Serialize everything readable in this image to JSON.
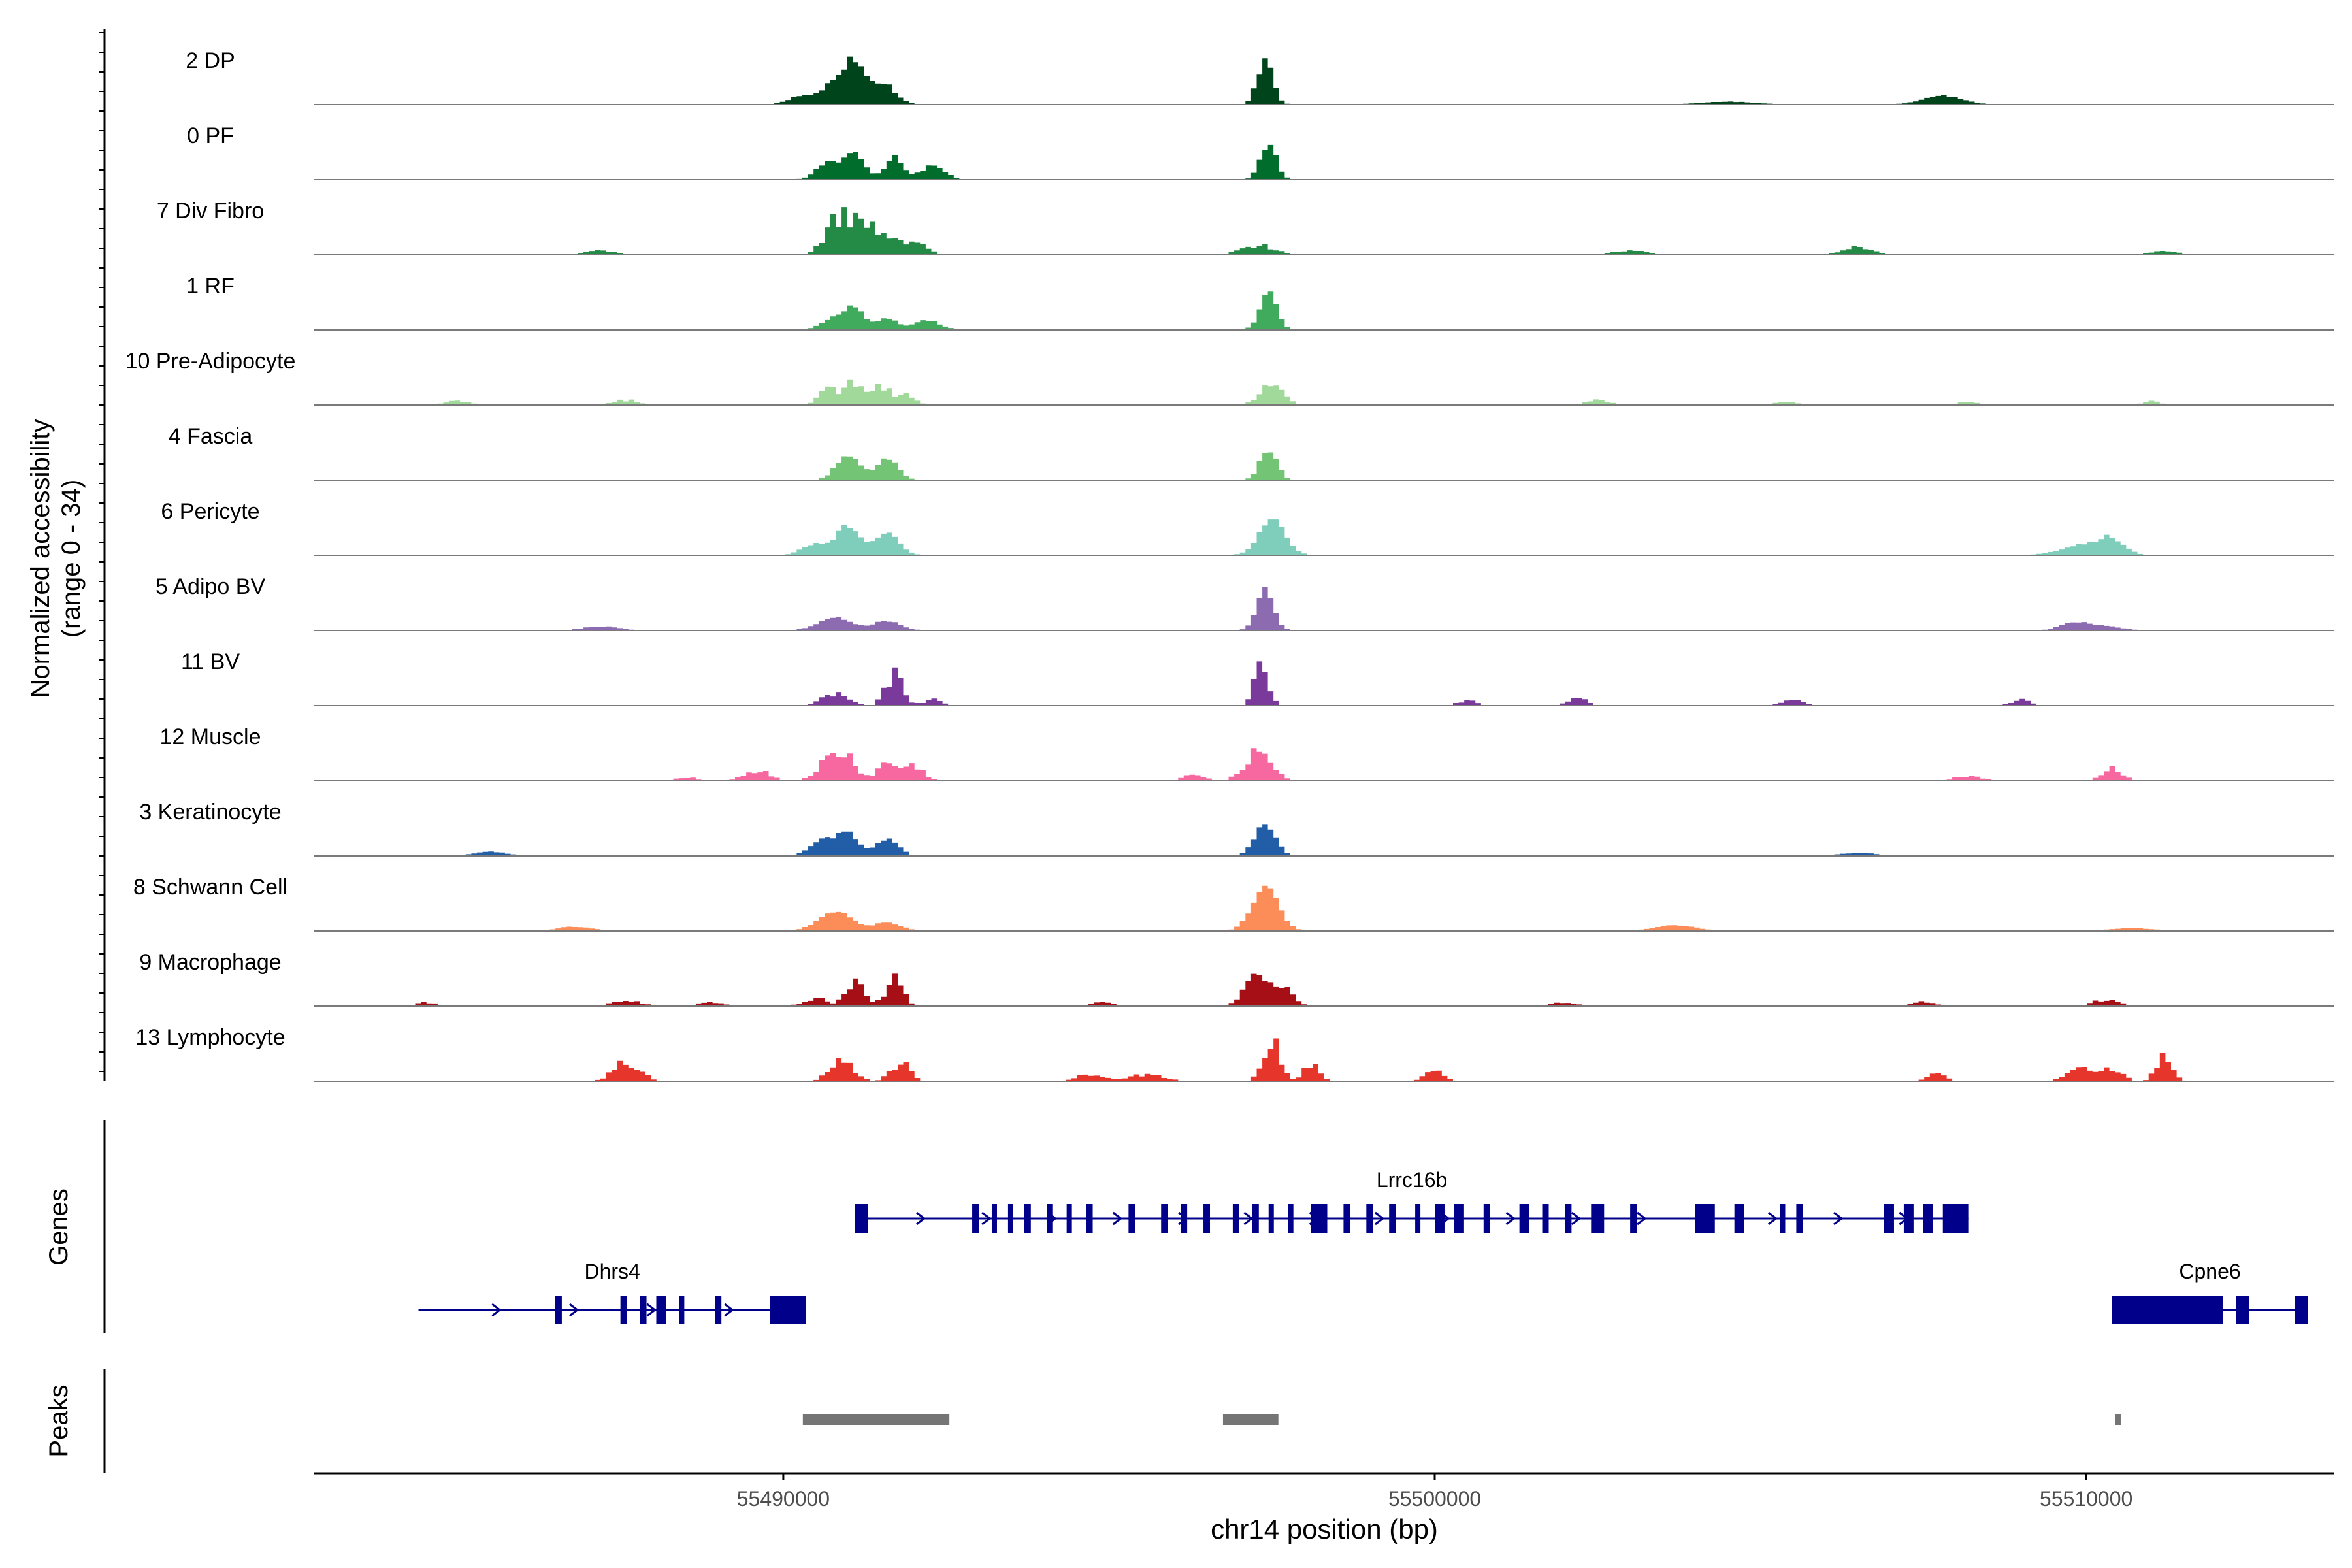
{
  "chart_data": {
    "type": "area",
    "chromosome": "chr14",
    "xlabel": "chr14 position (bp)",
    "ylabel_line1": "Normalized accessibility",
    "ylabel_line2": "(range 0 - 34)",
    "y_range": [
      0,
      34
    ],
    "xlim": [
      55482800,
      55513800
    ],
    "x_ticks": [
      55490000,
      55500000,
      55510000
    ],
    "x_tick_labels": [
      "55490000",
      "55500000",
      "55510000"
    ],
    "tracks": [
      {
        "name": "2 DP",
        "color": "#00441b",
        "baseline": 0.08,
        "width_factor": 1.0,
        "sparse": false,
        "peaks": [
          [
            55490800,
            16,
            180
          ],
          [
            55491100,
            28,
            130
          ],
          [
            55491500,
            16,
            200
          ],
          [
            55490300,
            6,
            200
          ],
          [
            55497400,
            31,
            120
          ],
          [
            55507800,
            6,
            300
          ],
          [
            55504500,
            2,
            400
          ]
        ]
      },
      {
        "name": "0 PF",
        "color": "#006d2c",
        "baseline": 0.08,
        "width_factor": 1.0,
        "sparse": false,
        "peaks": [
          [
            55490700,
            12,
            180
          ],
          [
            55491100,
            18,
            150
          ],
          [
            55491700,
            16,
            140
          ],
          [
            55492300,
            10,
            180
          ],
          [
            55497450,
            26,
            120
          ]
        ]
      },
      {
        "name": "7 Div Fibro",
        "color": "#238b45",
        "baseline": 0.3,
        "width_factor": 1.0,
        "sparse": true,
        "peaks": [
          [
            55490900,
            32,
            220
          ],
          [
            55491300,
            20,
            160
          ],
          [
            55491700,
            12,
            180
          ],
          [
            55492100,
            8,
            150
          ],
          [
            55497300,
            8,
            260
          ],
          [
            55487200,
            4,
            200
          ],
          [
            55506500,
            6,
            250
          ],
          [
            55511200,
            4,
            200
          ],
          [
            55503000,
            3,
            300
          ]
        ]
      },
      {
        "name": "1 RF",
        "color": "#41ab5d",
        "baseline": 0.05,
        "width_factor": 1.0,
        "sparse": false,
        "peaks": [
          [
            55490800,
            8,
            200
          ],
          [
            55491100,
            15,
            150
          ],
          [
            55491600,
            8,
            150
          ],
          [
            55492200,
            7,
            200
          ],
          [
            55497450,
            27,
            130
          ]
        ]
      },
      {
        "name": "10 Pre-Adipocyte",
        "color": "#a1d99b",
        "baseline": 0.2,
        "width_factor": 1.0,
        "sparse": true,
        "peaks": [
          [
            55490700,
            12,
            150
          ],
          [
            55491100,
            20,
            150
          ],
          [
            55491500,
            16,
            150
          ],
          [
            55491900,
            10,
            120
          ],
          [
            55497500,
            16,
            180
          ],
          [
            55485000,
            3,
            200
          ],
          [
            55487600,
            4,
            200
          ],
          [
            55502500,
            5,
            150
          ],
          [
            55505400,
            3,
            150
          ],
          [
            55508200,
            3,
            150
          ],
          [
            55511000,
            3,
            150
          ]
        ]
      },
      {
        "name": "4 Fascia",
        "color": "#74c476",
        "baseline": 0.05,
        "width_factor": 1.0,
        "sparse": false,
        "peaks": [
          [
            55491000,
            18,
            180
          ],
          [
            55491600,
            16,
            160
          ],
          [
            55497450,
            23,
            130
          ]
        ]
      },
      {
        "name": "6 Pericyte",
        "color": "#7fcdbb",
        "baseline": 0.1,
        "width_factor": 1.0,
        "sparse": false,
        "peaks": [
          [
            55490500,
            8,
            200
          ],
          [
            55491000,
            21,
            180
          ],
          [
            55491600,
            16,
            180
          ],
          [
            55497500,
            25,
            200
          ],
          [
            55510000,
            8,
            350
          ],
          [
            55510400,
            9,
            180
          ]
        ]
      },
      {
        "name": "5 Adipo BV",
        "color": "#8c6bb1",
        "baseline": 0.1,
        "width_factor": 1.0,
        "sparse": false,
        "peaks": [
          [
            55490800,
            10,
            250
          ],
          [
            55491600,
            7,
            200
          ],
          [
            55497400,
            30,
            130
          ],
          [
            55487200,
            3,
            250
          ],
          [
            55509800,
            6,
            200
          ],
          [
            55510300,
            3,
            250
          ]
        ]
      },
      {
        "name": "11 BV",
        "color": "#7a3a9c",
        "baseline": 0.3,
        "width_factor": 1.0,
        "sparse": true,
        "peaks": [
          [
            55490800,
            10,
            200
          ],
          [
            55491700,
            25,
            130
          ],
          [
            55492300,
            5,
            150
          ],
          [
            55497350,
            34,
            110
          ],
          [
            55502200,
            6,
            150
          ],
          [
            55505500,
            6,
            150
          ],
          [
            55509000,
            5,
            150
          ],
          [
            55500500,
            4,
            150
          ]
        ]
      },
      {
        "name": "12 Muscle",
        "color": "#f768a1",
        "baseline": 0.3,
        "width_factor": 1.0,
        "sparse": true,
        "peaks": [
          [
            55490700,
            16,
            180
          ],
          [
            55491000,
            16,
            150
          ],
          [
            55491600,
            14,
            150
          ],
          [
            55492000,
            12,
            150
          ],
          [
            55497300,
            26,
            200
          ],
          [
            55510400,
            10,
            150
          ],
          [
            55489600,
            8,
            200
          ],
          [
            55488500,
            3,
            150
          ],
          [
            55508200,
            4,
            200
          ],
          [
            55496300,
            5,
            150
          ]
        ]
      },
      {
        "name": "3 Keratinocyte",
        "color": "#225ea8",
        "baseline": 0.1,
        "width_factor": 1.0,
        "sparse": false,
        "peaks": [
          [
            55490600,
            12,
            180
          ],
          [
            55491000,
            16,
            160
          ],
          [
            55491600,
            13,
            160
          ],
          [
            55497400,
            23,
            160
          ],
          [
            55485500,
            3,
            250
          ],
          [
            55506500,
            2,
            300
          ]
        ]
      },
      {
        "name": "8 Schwann Cell",
        "color": "#fc8d59",
        "baseline": 0.15,
        "width_factor": 1.0,
        "sparse": false,
        "peaks": [
          [
            55490800,
            14,
            250
          ],
          [
            55491600,
            6,
            200
          ],
          [
            55497400,
            31,
            200
          ],
          [
            55486800,
            3,
            250
          ],
          [
            55503700,
            4,
            300
          ],
          [
            55510700,
            2,
            300
          ]
        ]
      },
      {
        "name": "9 Macrophage",
        "color": "#a50f15",
        "baseline": 0.3,
        "width_factor": 1.0,
        "sparse": true,
        "peaks": [
          [
            55491100,
            20,
            130
          ],
          [
            55491700,
            23,
            130
          ],
          [
            55490500,
            6,
            200
          ],
          [
            55497300,
            26,
            200
          ],
          [
            55497700,
            12,
            150
          ],
          [
            55487600,
            5,
            200
          ],
          [
            55510300,
            5,
            200
          ],
          [
            55507500,
            4,
            150
          ],
          [
            55484500,
            3,
            150
          ],
          [
            55488900,
            3,
            200
          ],
          [
            55502000,
            3,
            200
          ],
          [
            55494900,
            3,
            150
          ]
        ]
      },
      {
        "name": "13 Lymphocyte",
        "color": "#e6352a",
        "baseline": 0.3,
        "width_factor": 1.0,
        "sparse": true,
        "peaks": [
          [
            55487600,
            16,
            200
          ],
          [
            55490900,
            17,
            180
          ],
          [
            55491800,
            15,
            150
          ],
          [
            55497500,
            32,
            130
          ],
          [
            55498100,
            14,
            120
          ],
          [
            55500000,
            8,
            150
          ],
          [
            55511200,
            22,
            120
          ],
          [
            55509900,
            10,
            200
          ],
          [
            55510400,
            10,
            150
          ],
          [
            55494700,
            6,
            200
          ],
          [
            55495600,
            6,
            250
          ],
          [
            55507700,
            6,
            150
          ]
        ]
      }
    ],
    "genes_label": "Genes",
    "peaks_label": "Peaks",
    "genes": [
      {
        "name": "Lrrc16b",
        "start": 55491100,
        "end": 55508200,
        "row": 0,
        "strand": "+",
        "exons": [
          [
            55491100,
            55491300
          ],
          [
            55492900,
            55493000
          ],
          [
            55493200,
            55493250
          ],
          [
            55493450,
            55493500
          ],
          [
            55493700,
            55493800
          ],
          [
            55494050,
            55494100
          ],
          [
            55494350,
            55494400
          ],
          [
            55494650,
            55494750
          ],
          [
            55495300,
            55495400
          ],
          [
            55495800,
            55495900
          ],
          [
            55496100,
            55496200
          ],
          [
            55496450,
            55496550
          ],
          [
            55496900,
            55497000
          ],
          [
            55497200,
            55497300
          ],
          [
            55497450,
            55497500
          ],
          [
            55497750,
            55497800
          ],
          [
            55498100,
            55498350
          ],
          [
            55498600,
            55498700
          ],
          [
            55498950,
            55499050
          ],
          [
            55499300,
            55499400
          ],
          [
            55499700,
            55499750
          ],
          [
            55500000,
            55500150
          ],
          [
            55500300,
            55500450
          ],
          [
            55500750,
            55500850
          ],
          [
            55501300,
            55501450
          ],
          [
            55501650,
            55501750
          ],
          [
            55502000,
            55502100
          ],
          [
            55502400,
            55502600
          ],
          [
            55503000,
            55503100
          ],
          [
            55504000,
            55504300
          ],
          [
            55504600,
            55504750
          ],
          [
            55505300,
            55505350
          ],
          [
            55505550,
            55505650
          ],
          [
            55506900,
            55507050
          ],
          [
            55507200,
            55507350
          ],
          [
            55507500,
            55507650
          ],
          [
            55507800,
            55508200
          ]
        ]
      },
      {
        "name": "Dhrs4",
        "start": 55484400,
        "end": 55490350,
        "row": 1,
        "strand": "+",
        "exons": [
          [
            55486500,
            55486600
          ],
          [
            55487500,
            55487600
          ],
          [
            55487800,
            55487900
          ],
          [
            55488050,
            55488200
          ],
          [
            55488400,
            55488450
          ],
          [
            55488950,
            55489050
          ],
          [
            55489800,
            55490350
          ]
        ]
      },
      {
        "name": "Cpne6",
        "start": 55510400,
        "end": 55513400,
        "row": 1,
        "strand": "+",
        "exons": [
          [
            55510400,
            55512100
          ],
          [
            55512300,
            55512500
          ],
          [
            55513200,
            55513400
          ]
        ]
      }
    ],
    "peak_regions": [
      [
        55490300,
        55492550
      ],
      [
        55496750,
        55497600
      ],
      [
        55510450,
        55510520
      ]
    ]
  }
}
